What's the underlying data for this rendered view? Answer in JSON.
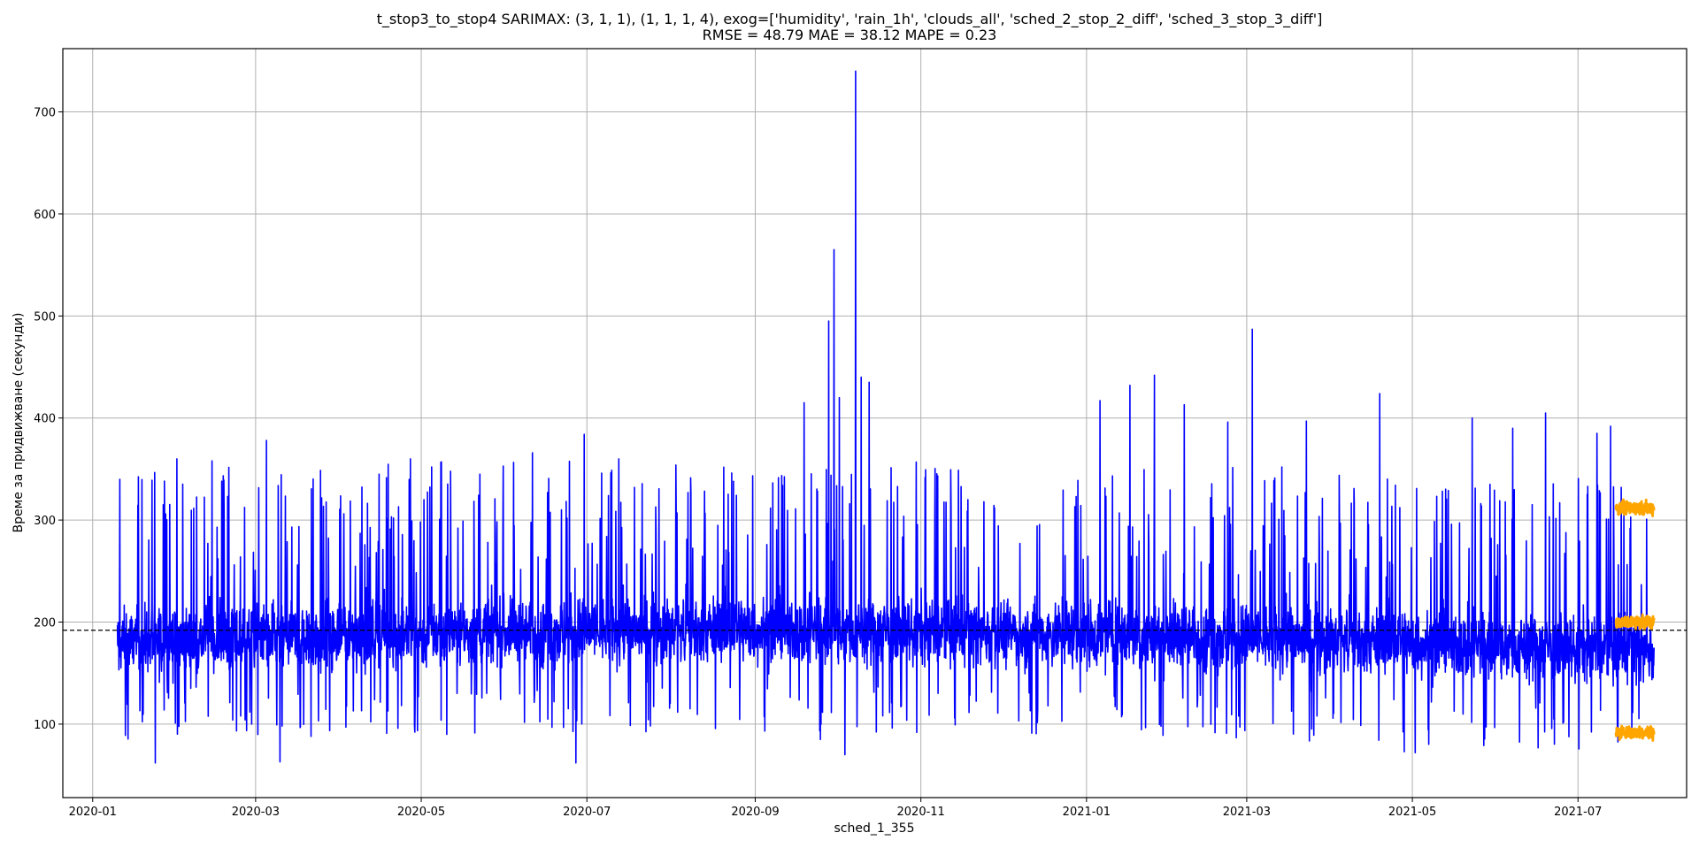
{
  "chart_data": {
    "type": "line",
    "title": "t_stop3_to_stop4 SARIMAX: (3, 1, 1), (1, 1, 1, 4), exog=['humidity', 'rain_1h', 'clouds_all', 'sched_2_stop_2_diff', 'sched_3_stop_3_diff']",
    "subtitle": "RMSE = 48.79  MAE = 38.12  MAPE = 0.23",
    "xlabel": "sched_1_355",
    "ylabel": "Време за придвижване (секунди)",
    "xlim": [
      "2019-12-21",
      "2021-08-10"
    ],
    "ylim": [
      28,
      762
    ],
    "x_ticks": [
      "2020-01",
      "2020-03",
      "2020-05",
      "2020-07",
      "2020-09",
      "2020-11",
      "2021-01",
      "2021-03",
      "2021-05",
      "2021-07"
    ],
    "y_ticks": [
      100,
      200,
      300,
      400,
      500,
      600,
      700
    ],
    "grid": true,
    "series": [
      {
        "color": "#0000ff",
        "x_range": [
          "2020-01-10",
          "2021-07-29"
        ],
        "base_level": 185,
        "typical_range": [
          100,
          260
        ],
        "peaks": [
          {
            "x": "2020-01-11",
            "y": 340
          },
          {
            "x": "2020-01-13",
            "y": 89
          },
          {
            "x": "2020-01-24",
            "y": 62
          },
          {
            "x": "2020-01-27",
            "y": 315
          },
          {
            "x": "2020-02-01",
            "y": 360
          },
          {
            "x": "2020-02-14",
            "y": 358
          },
          {
            "x": "2020-03-05",
            "y": 378
          },
          {
            "x": "2020-03-10",
            "y": 63
          },
          {
            "x": "2020-04-27",
            "y": 360
          },
          {
            "x": "2020-05-02",
            "y": 320
          },
          {
            "x": "2020-06-11",
            "y": 366
          },
          {
            "x": "2020-06-30",
            "y": 384
          },
          {
            "x": "2020-06-27",
            "y": 62
          },
          {
            "x": "2020-08-24",
            "y": 338
          },
          {
            "x": "2020-09-19",
            "y": 415
          },
          {
            "x": "2020-09-28",
            "y": 495
          },
          {
            "x": "2020-09-30",
            "y": 565
          },
          {
            "x": "2020-10-02",
            "y": 420
          },
          {
            "x": "2020-10-08",
            "y": 740
          },
          {
            "x": "2020-10-10",
            "y": 440
          },
          {
            "x": "2020-10-13",
            "y": 435
          },
          {
            "x": "2020-09-25",
            "y": 85
          },
          {
            "x": "2020-10-04",
            "y": 70
          },
          {
            "x": "2021-01-06",
            "y": 417
          },
          {
            "x": "2021-01-17",
            "y": 432
          },
          {
            "x": "2021-01-26",
            "y": 442
          },
          {
            "x": "2021-02-06",
            "y": 413
          },
          {
            "x": "2021-02-22",
            "y": 396
          },
          {
            "x": "2021-03-03",
            "y": 487
          },
          {
            "x": "2021-03-23",
            "y": 397
          },
          {
            "x": "2021-04-19",
            "y": 424
          },
          {
            "x": "2021-05-23",
            "y": 400
          },
          {
            "x": "2021-06-07",
            "y": 390
          },
          {
            "x": "2021-06-19",
            "y": 405
          },
          {
            "x": "2021-07-08",
            "y": 385
          },
          {
            "x": "2021-07-13",
            "y": 392
          },
          {
            "x": "2021-04-28",
            "y": 73
          },
          {
            "x": "2021-05-02",
            "y": 72
          }
        ]
      },
      {
        "color": "#ffa500",
        "x_range": [
          "2021-07-15",
          "2021-07-29"
        ],
        "upper_band": 312,
        "middle_band": 200,
        "lower_band": 92
      }
    ],
    "reference_line": {
      "y": 192,
      "style": "dashed",
      "color": "#000000"
    }
  }
}
